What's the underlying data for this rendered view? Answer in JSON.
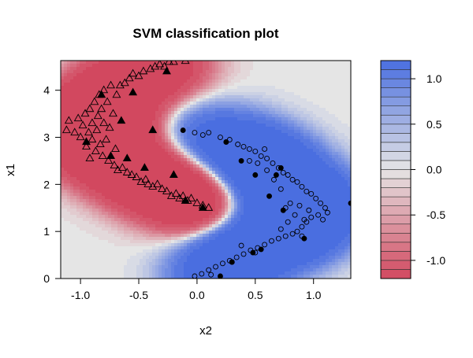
{
  "chart_data": {
    "type": "contour-scatter",
    "title": "SVM classification plot",
    "xlabel": "x2",
    "ylabel": "x1",
    "xlim": [
      -1.17,
      1.32
    ],
    "ylim": [
      0.0,
      4.63
    ],
    "x_ticks": [
      -1.0,
      -0.5,
      0.0,
      0.5,
      1.0
    ],
    "x_tick_labels": [
      "-1.0",
      "-0.5",
      "0.0",
      "0.5",
      "1.0"
    ],
    "y_ticks": [
      0,
      1,
      2,
      3,
      4
    ],
    "y_tick_labels": [
      "0",
      "1",
      "2",
      "3",
      "4"
    ],
    "colors": {
      "negative": "#d2485f",
      "neutral": "#e5e5e5",
      "positive": "#4a6ee0"
    },
    "legend": {
      "range": [
        -1.2,
        1.2
      ],
      "levels": [
        -1.2,
        -1.1,
        -1.0,
        -0.9,
        -0.8,
        -0.7,
        -0.6,
        -0.5,
        -0.4,
        -0.3,
        -0.2,
        -0.1,
        0.0,
        0.1,
        0.2,
        0.3,
        0.4,
        0.5,
        0.6,
        0.7,
        0.8,
        0.9,
        1.0,
        1.1,
        1.2
      ],
      "ticks": [
        -1.0,
        -0.5,
        0.0,
        0.5,
        1.0
      ],
      "tick_labels": [
        "-1.0",
        "-0.5",
        "0.0",
        "0.5",
        "1.0"
      ]
    },
    "series": [
      {
        "name": "class triangle",
        "marker": "triangle",
        "points": [
          [
            -1.1,
            3.35
          ],
          [
            -1.05,
            3.1
          ],
          [
            -1.02,
            3.4
          ],
          [
            -1.0,
            3.0
          ],
          [
            -0.98,
            3.25
          ],
          [
            -0.96,
            3.5
          ],
          [
            -0.95,
            2.8
          ],
          [
            -0.93,
            3.1
          ],
          [
            -0.92,
            3.6
          ],
          [
            -0.9,
            2.95
          ],
          [
            -0.9,
            3.3
          ],
          [
            -0.88,
            3.75
          ],
          [
            -0.87,
            2.7
          ],
          [
            -0.86,
            3.15
          ],
          [
            -0.85,
            3.45
          ],
          [
            -0.84,
            3.9
          ],
          [
            -0.83,
            2.85
          ],
          [
            -0.82,
            3.6
          ],
          [
            -0.81,
            2.6
          ],
          [
            -0.8,
            3.3
          ],
          [
            -0.8,
            4.0
          ],
          [
            -0.78,
            2.95
          ],
          [
            -0.77,
            3.75
          ],
          [
            -0.76,
            2.5
          ],
          [
            -0.75,
            3.2
          ],
          [
            -0.74,
            4.1
          ],
          [
            -0.72,
            3.5
          ],
          [
            -0.71,
            2.4
          ],
          [
            -0.7,
            2.75
          ],
          [
            -0.69,
            3.9
          ],
          [
            -0.66,
            4.1
          ],
          [
            -0.64,
            2.35
          ],
          [
            -0.62,
            4.15
          ],
          [
            -0.6,
            2.25
          ],
          [
            -0.58,
            4.25
          ],
          [
            -0.56,
            2.2
          ],
          [
            -0.55,
            4.35
          ],
          [
            -0.52,
            2.15
          ],
          [
            -0.5,
            4.3
          ],
          [
            -0.48,
            2.05
          ],
          [
            -0.46,
            4.4
          ],
          [
            -0.44,
            2.1
          ],
          [
            -0.42,
            2.0
          ],
          [
            -0.4,
            4.45
          ],
          [
            -0.38,
            1.95
          ],
          [
            -0.36,
            4.5
          ],
          [
            -0.34,
            2.0
          ],
          [
            -0.32,
            4.55
          ],
          [
            -0.3,
            1.9
          ],
          [
            -0.28,
            4.5
          ],
          [
            -0.26,
            1.85
          ],
          [
            -0.24,
            4.6
          ],
          [
            -0.22,
            1.75
          ],
          [
            -0.2,
            4.6
          ],
          [
            -0.18,
            1.8
          ],
          [
            -0.15,
            1.7
          ],
          [
            -0.12,
            1.75
          ],
          [
            -0.1,
            4.62
          ],
          [
            -0.08,
            1.65
          ],
          [
            -0.05,
            1.7
          ],
          [
            0.0,
            1.6
          ],
          [
            0.05,
            1.55
          ],
          [
            0.1,
            1.5
          ],
          [
            -0.68,
            2.3
          ],
          [
            -0.92,
            2.55
          ],
          [
            -1.12,
            3.15
          ]
        ]
      },
      {
        "name": "class circle",
        "marker": "circle",
        "points": [
          [
            -0.02,
            3.1
          ],
          [
            0.05,
            3.05
          ],
          [
            0.1,
            3.1
          ],
          [
            0.2,
            3.0
          ],
          [
            0.28,
            2.95
          ],
          [
            0.35,
            2.85
          ],
          [
            0.4,
            2.8
          ],
          [
            0.45,
            2.75
          ],
          [
            0.5,
            2.7
          ],
          [
            0.55,
            2.6
          ],
          [
            0.6,
            2.55
          ],
          [
            0.65,
            2.45
          ],
          [
            0.7,
            2.35
          ],
          [
            0.74,
            2.25
          ],
          [
            0.78,
            2.2
          ],
          [
            0.82,
            2.1
          ],
          [
            0.86,
            2.05
          ],
          [
            0.9,
            1.95
          ],
          [
            0.94,
            1.85
          ],
          [
            0.98,
            1.8
          ],
          [
            1.02,
            1.7
          ],
          [
            1.06,
            1.6
          ],
          [
            1.1,
            1.5
          ],
          [
            1.12,
            1.4
          ],
          [
            0.98,
            1.3
          ],
          [
            0.94,
            1.2
          ],
          [
            0.9,
            1.1
          ],
          [
            0.86,
            1.0
          ],
          [
            0.82,
            0.95
          ],
          [
            0.76,
            0.9
          ],
          [
            0.7,
            0.85
          ],
          [
            0.64,
            0.8
          ],
          [
            0.58,
            0.72
          ],
          [
            0.52,
            0.65
          ],
          [
            0.46,
            0.6
          ],
          [
            0.4,
            0.52
          ],
          [
            0.34,
            0.45
          ],
          [
            0.28,
            0.38
          ],
          [
            0.22,
            0.32
          ],
          [
            0.16,
            0.25
          ],
          [
            0.1,
            0.18
          ],
          [
            0.04,
            0.1
          ],
          [
            -0.02,
            0.05
          ],
          [
            0.6,
            2.3
          ],
          [
            0.66,
            2.1
          ],
          [
            0.72,
            1.9
          ],
          [
            0.8,
            1.6
          ],
          [
            0.88,
            1.55
          ],
          [
            0.96,
            1.45
          ],
          [
            1.04,
            1.35
          ],
          [
            1.08,
            1.25
          ],
          [
            0.78,
            1.2
          ],
          [
            0.72,
            1.05
          ],
          [
            0.84,
            1.35
          ],
          [
            0.9,
            0.9
          ],
          [
            0.5,
            0.55
          ],
          [
            0.38,
            0.7
          ],
          [
            0.3,
            0.35
          ],
          [
            0.12,
            0.08
          ],
          [
            0.45,
            2.5
          ],
          [
            0.52,
            2.45
          ],
          [
            0.58,
            2.75
          ],
          [
            0.76,
            1.5
          ],
          [
            0.92,
            1.25
          ]
        ]
      },
      {
        "name": "support vectors triangle",
        "marker": "triangle-filled",
        "points": [
          [
            -0.82,
            3.9
          ],
          [
            -0.74,
            2.6
          ],
          [
            -0.65,
            3.35
          ],
          [
            -0.6,
            2.55
          ],
          [
            -0.45,
            2.35
          ],
          [
            -0.38,
            3.15
          ],
          [
            -0.26,
            4.4
          ],
          [
            -0.2,
            2.2
          ],
          [
            -0.1,
            1.65
          ],
          [
            0.05,
            1.5
          ],
          [
            -0.55,
            3.95
          ],
          [
            -0.95,
            2.9
          ]
        ]
      },
      {
        "name": "support vectors circle",
        "marker": "circle-filled",
        "points": [
          [
            -0.12,
            3.15
          ],
          [
            0.25,
            2.9
          ],
          [
            0.38,
            2.5
          ],
          [
            0.5,
            2.2
          ],
          [
            0.62,
            1.75
          ],
          [
            0.68,
            2.2
          ],
          [
            0.74,
            1.45
          ],
          [
            1.32,
            1.6
          ],
          [
            0.92,
            0.85
          ],
          [
            0.55,
            0.62
          ],
          [
            0.3,
            0.35
          ],
          [
            0.2,
            0.05
          ],
          [
            0.48,
            0.55
          ],
          [
            0.72,
            2.35
          ]
        ]
      }
    ]
  }
}
